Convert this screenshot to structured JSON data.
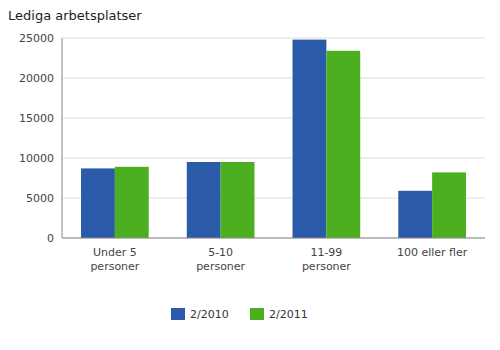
{
  "chart_data": {
    "type": "bar",
    "title": "Lediga arbetsplatser",
    "categories": [
      "Under 5\npersoner",
      "5-10\npersoner",
      "11-99\npersoner",
      "100 eller fler"
    ],
    "series": [
      {
        "name": "2/2010",
        "color": "#2B5BA8",
        "values": [
          8700,
          9500,
          24800,
          5900
        ]
      },
      {
        "name": "2/2011",
        "color": "#4CAF1F",
        "values": [
          8900,
          9500,
          23400,
          8200
        ]
      }
    ],
    "ylim": [
      0,
      25000
    ],
    "yticks": [
      0,
      5000,
      10000,
      15000,
      20000,
      25000
    ],
    "grid": true,
    "legend": "bottom"
  }
}
